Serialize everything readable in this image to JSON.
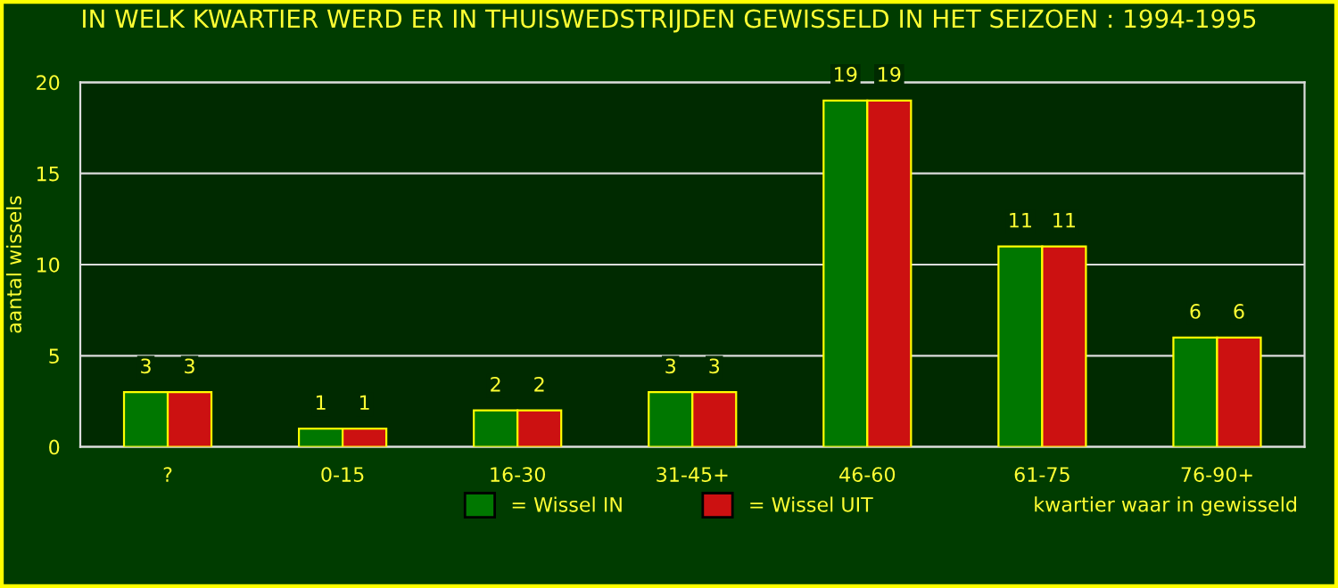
{
  "chart_data": {
    "type": "bar",
    "title": "IN WELK KWARTIER WERD ER IN THUISWEDSTRIJDEN GEWISSELD IN HET SEIZOEN : 1994-1995",
    "xlabel": "kwartier waar in gewisseld",
    "ylabel": "aantal wissels",
    "categories": [
      "?",
      "0-15",
      "16-30",
      "31-45+",
      "46-60",
      "61-75",
      "76-90+"
    ],
    "series": [
      {
        "name": "= Wissel IN",
        "color": "#007700",
        "values": [
          3,
          1,
          2,
          3,
          19,
          11,
          6
        ]
      },
      {
        "name": "= Wissel UIT",
        "color": "#cc1111",
        "values": [
          3,
          1,
          2,
          3,
          19,
          11,
          6
        ]
      }
    ],
    "ylim": [
      0,
      20
    ],
    "yticks": [
      0,
      5,
      10,
      15,
      20
    ],
    "grid": "y",
    "legend": "bottom",
    "data_labels": true
  }
}
